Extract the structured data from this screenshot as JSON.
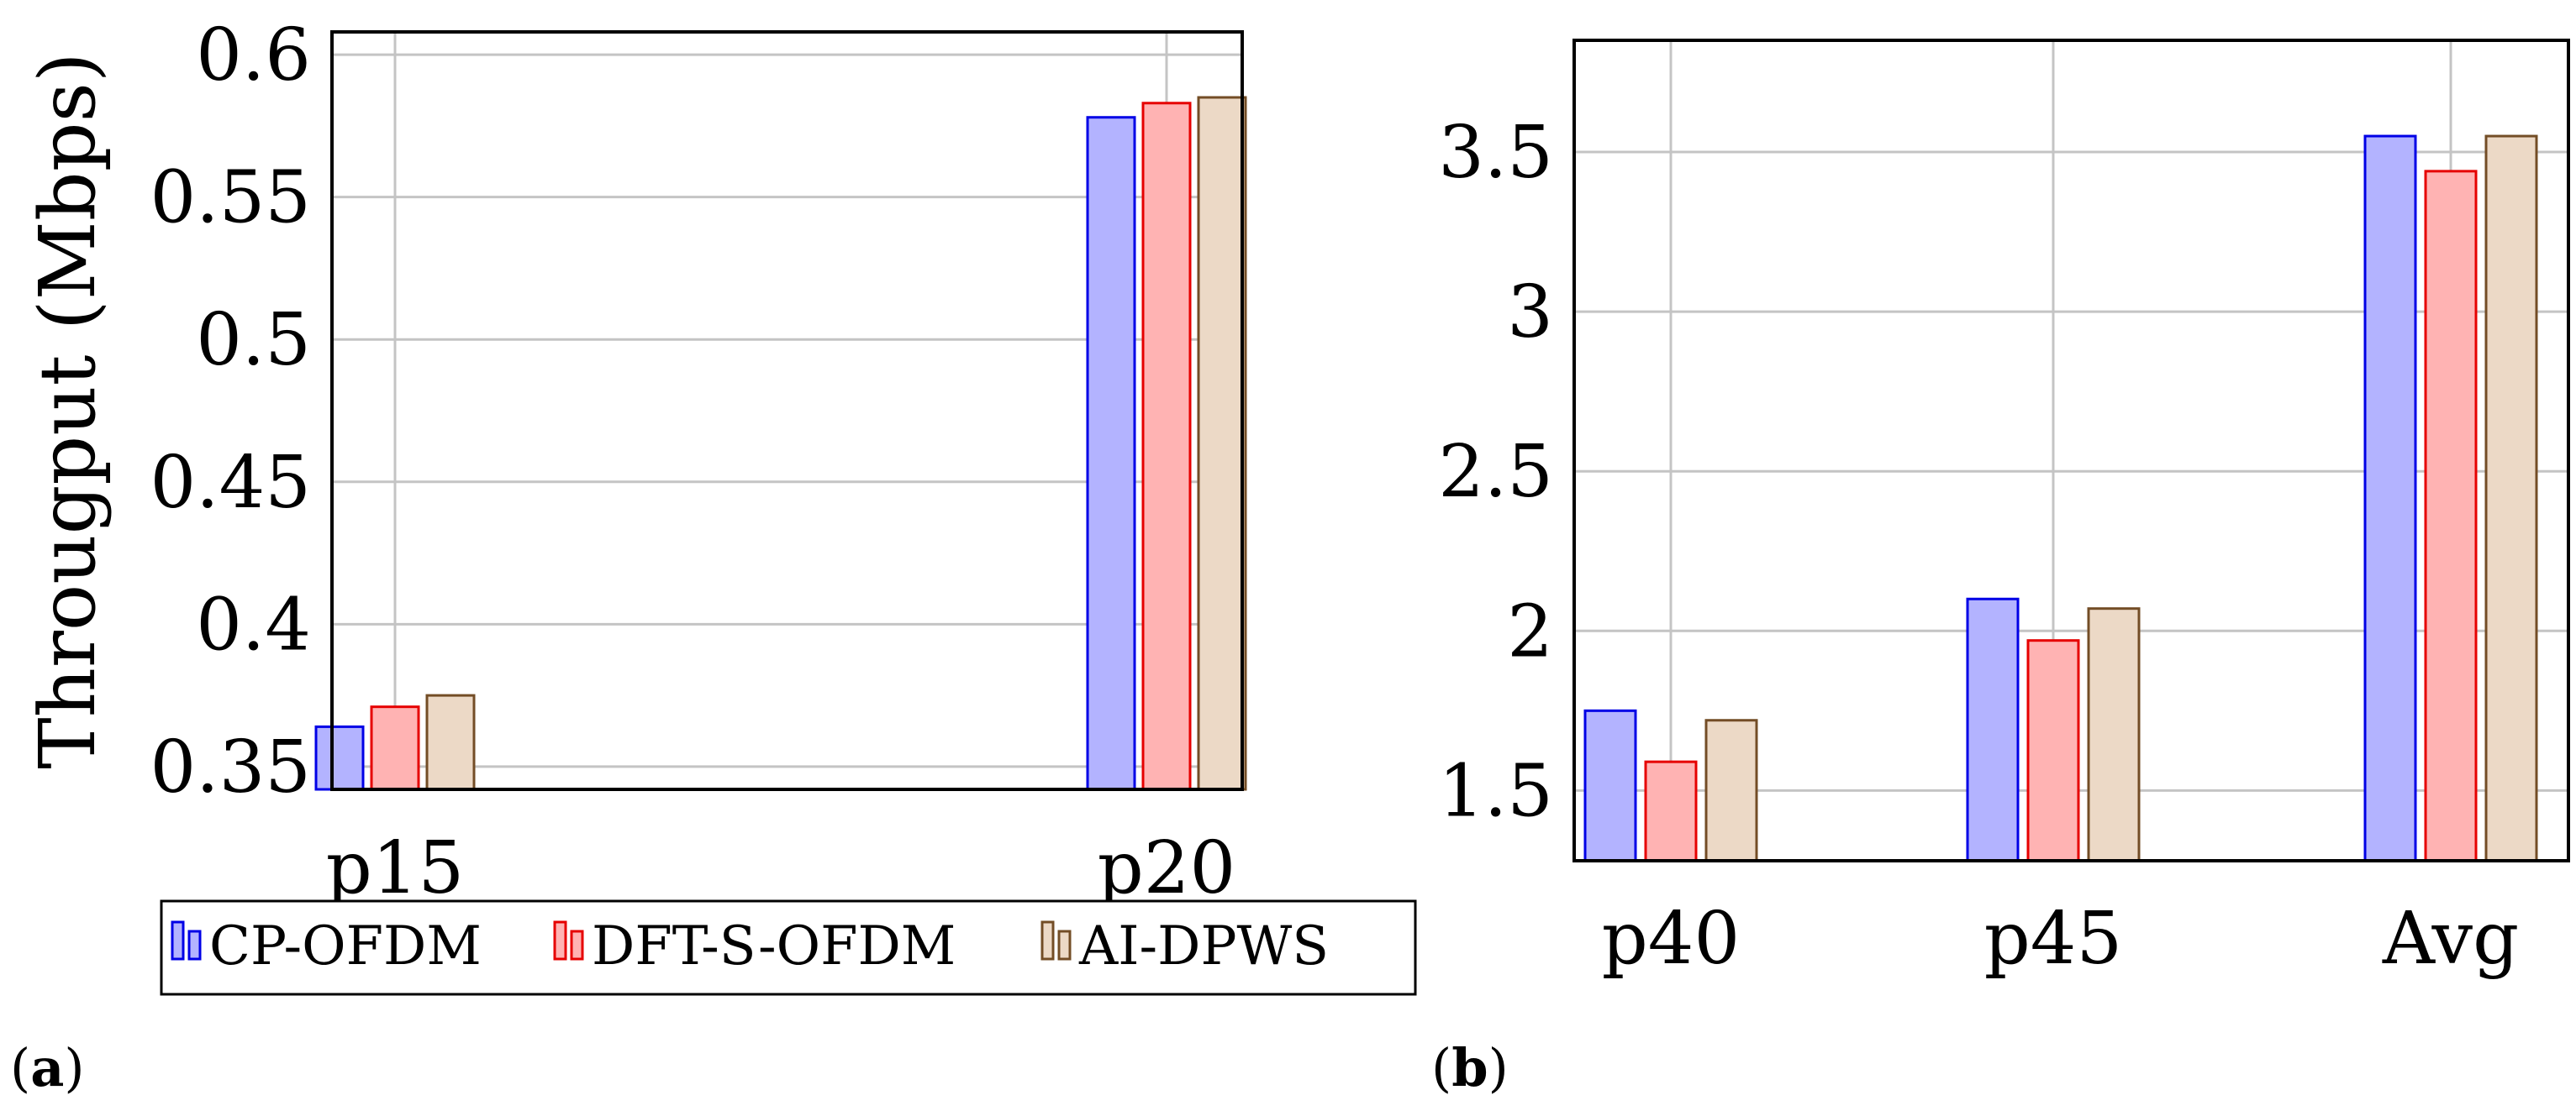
{
  "series_styles": [
    {
      "fill": "#b3b3ff",
      "stroke": "#0000e6"
    },
    {
      "fill": "#ffb3b3",
      "stroke": "#e60000"
    },
    {
      "fill": "#ecd9c6",
      "stroke": "#734d26"
    }
  ],
  "legend": {
    "items": [
      "CP-OFDM",
      "DFT-S-OFDM",
      "AI-DPWS"
    ]
  },
  "panels": [
    {
      "label_pre": "(",
      "label_letter": "a",
      "label_post": ")"
    },
    {
      "label_pre": "(",
      "label_letter": "b",
      "label_post": ")"
    }
  ],
  "chart_data": [
    {
      "type": "bar",
      "ylabel": "Througput (Mbps)",
      "categories": [
        "p15",
        "p20"
      ],
      "ylim": [
        0.342,
        0.608
      ],
      "yticks": [
        0.35,
        0.4,
        0.45,
        0.5,
        0.55,
        0.6
      ],
      "ytick_labels": [
        "0.35",
        "0.4",
        "0.45",
        "0.5",
        "0.55",
        "0.6"
      ],
      "grid": true,
      "series": [
        {
          "name": "CP-OFDM",
          "values": [
            0.364,
            0.578
          ]
        },
        {
          "name": "DFT-S-OFDM",
          "values": [
            0.371,
            0.583
          ]
        },
        {
          "name": "AI-DPWS",
          "values": [
            0.375,
            0.585
          ]
        }
      ]
    },
    {
      "type": "bar",
      "ylabel": "",
      "categories": [
        "p40",
        "p45",
        "Avg"
      ],
      "ylim": [
        1.28,
        3.85
      ],
      "yticks": [
        1.5,
        2,
        2.5,
        3,
        3.5
      ],
      "ytick_labels": [
        "1.5",
        "2",
        "2.5",
        "3",
        "3.5"
      ],
      "grid": true,
      "series": [
        {
          "name": "CP-OFDM",
          "values": [
            1.75,
            2.1,
            3.55
          ]
        },
        {
          "name": "DFT-S-OFDM",
          "values": [
            1.59,
            1.97,
            3.44
          ]
        },
        {
          "name": "AI-DPWS",
          "values": [
            1.72,
            2.07,
            3.55
          ]
        }
      ]
    }
  ]
}
